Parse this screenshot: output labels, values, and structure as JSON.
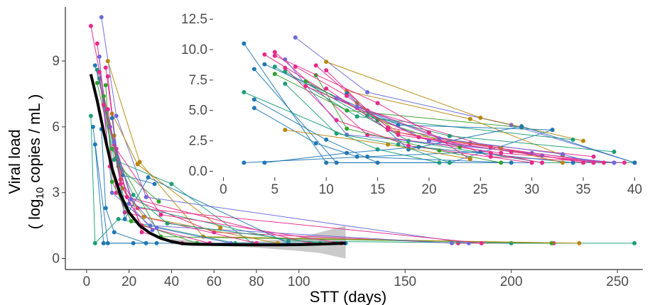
{
  "chart_data": [
    {
      "type": "line",
      "role": "main",
      "xlabel": "STT (days)",
      "ylabel_line1": "Viral load",
      "ylabel_line2_pre": "( log",
      "ylabel_line2_sub": "10",
      "ylabel_line2_post": " copies / mL )",
      "xlim": [
        -10,
        262
      ],
      "ylim": [
        -0.5,
        11.2
      ],
      "xticks": [
        0,
        20,
        40,
        60,
        80,
        100,
        150,
        200,
        250
      ],
      "yticks": [
        0,
        3,
        6,
        9
      ],
      "trend": {
        "x": [
          2,
          5,
          8,
          12,
          16,
          20,
          25,
          30,
          35,
          40,
          45,
          50,
          60,
          70,
          80,
          90,
          100,
          110,
          122
        ],
        "y": [
          8.4,
          7.2,
          5.8,
          4.1,
          2.9,
          2.1,
          1.5,
          1.15,
          0.92,
          0.78,
          0.68,
          0.65,
          0.64,
          0.63,
          0.62,
          0.62,
          0.63,
          0.66,
          0.7
        ]
      },
      "ci_band": {
        "x": [
          40,
          60,
          80,
          100,
          110,
          122
        ],
        "lower": [
          0.66,
          0.58,
          0.5,
          0.35,
          0.25,
          0.0
        ],
        "upper": [
          0.9,
          0.72,
          0.78,
          0.95,
          1.2,
          1.5
        ]
      },
      "series": [
        {
          "color": "#e7298a",
          "x": [
            5,
            14,
            60,
            175,
            220
          ],
          "y": [
            9.8,
            3.0,
            1.2,
            0.7,
            0.7
          ]
        },
        {
          "color": "#1b9e77",
          "x": [
            6,
            18,
            95,
            200,
            258
          ],
          "y": [
            8.2,
            2.5,
            0.8,
            0.7,
            0.7
          ]
        },
        {
          "color": "#1f78b4",
          "x": [
            3,
            10,
            22,
            122
          ],
          "y": [
            6.0,
            0.7,
            0.7,
            0.7
          ]
        },
        {
          "color": "#33a02c",
          "x": [
            5,
            12,
            35,
            219
          ],
          "y": [
            8.0,
            5.0,
            1.0,
            0.7
          ]
        },
        {
          "color": "#6a6adb",
          "x": [
            7,
            14,
            28,
            180
          ],
          "y": [
            11.0,
            6.5,
            2.8,
            0.7
          ]
        },
        {
          "color": "#b8860b",
          "x": [
            10,
            25,
            55,
            232
          ],
          "y": [
            9.0,
            4.4,
            1.0,
            0.7
          ]
        },
        {
          "color": "#1f78b4",
          "x": [
            4,
            8,
            33
          ],
          "y": [
            5.2,
            0.7,
            0.7
          ]
        },
        {
          "color": "#e7298a",
          "x": [
            2,
            11,
            26,
            45
          ],
          "y": [
            10.6,
            6.0,
            1.2,
            0.7
          ]
        },
        {
          "color": "#1b9e77",
          "x": [
            5,
            13,
            40,
            78
          ],
          "y": [
            8.6,
            4.5,
            3.4,
            0.7
          ]
        },
        {
          "color": "#e7298a",
          "x": [
            9,
            16,
            24,
            186
          ],
          "y": [
            8.7,
            3.6,
            2.3,
            0.7
          ]
        },
        {
          "color": "#6a6adb",
          "x": [
            6,
            12,
            30,
            172
          ],
          "y": [
            9.2,
            3.0,
            1.5,
            0.7
          ]
        },
        {
          "color": "#1f78b4",
          "x": [
            4,
            17,
            32
          ],
          "y": [
            8.8,
            3.8,
            3.4
          ]
        },
        {
          "color": "#33a02c",
          "x": [
            8,
            15,
            34
          ],
          "y": [
            7.4,
            4.2,
            2.6
          ]
        },
        {
          "color": "#b8860b",
          "x": [
            12,
            24,
            63
          ],
          "y": [
            6.6,
            4.3,
            1.4
          ]
        },
        {
          "color": "#e7298a",
          "x": [
            6,
            11,
            18,
            80
          ],
          "y": [
            8.5,
            4.2,
            2.1,
            0.7
          ]
        },
        {
          "color": "#1b9e77",
          "x": [
            2,
            4,
            15,
            70
          ],
          "y": [
            6.5,
            0.7,
            1.8,
            0.7
          ]
        },
        {
          "color": "#1f78b4",
          "x": [
            7,
            9,
            13,
            28
          ],
          "y": [
            5.9,
            2.3,
            1.2,
            0.7
          ]
        },
        {
          "color": "#e7298a",
          "x": [
            10,
            14,
            35,
            120
          ],
          "y": [
            8.3,
            5.0,
            2.0,
            0.7
          ]
        },
        {
          "color": "#33a02c",
          "x": [
            9,
            12,
            21,
            52
          ],
          "y": [
            7.9,
            3.5,
            1.7,
            0.7
          ]
        },
        {
          "color": "#6a6adb",
          "x": [
            11,
            20,
            31
          ],
          "y": [
            6.0,
            2.5,
            1.3
          ]
        },
        {
          "color": "#b8860b",
          "x": [
            13,
            17,
            27,
            90
          ],
          "y": [
            5.6,
            3.2,
            1.9,
            0.7
          ]
        },
        {
          "color": "#e7298a",
          "x": [
            8,
            13,
            19,
            105
          ],
          "y": [
            7.0,
            5.2,
            2.8,
            0.7
          ]
        },
        {
          "color": "#1f78b4",
          "x": [
            12,
            18,
            29,
            95
          ],
          "y": [
            6.4,
            1.8,
            3.7,
            0.7
          ]
        },
        {
          "color": "#1b9e77",
          "x": [
            14,
            22,
            38,
            110
          ],
          "y": [
            4.6,
            2.9,
            1.6,
            0.7
          ]
        },
        {
          "color": "#e7298a",
          "x": [
            10,
            16,
            26,
            58
          ],
          "y": [
            6.8,
            3.4,
            1.5,
            0.7
          ]
        },
        {
          "color": "#6a6adb",
          "x": [
            13,
            21,
            33,
            68
          ],
          "y": [
            5.3,
            2.7,
            1.4,
            0.7
          ]
        }
      ]
    },
    {
      "type": "line",
      "role": "inset",
      "xlim": [
        -1,
        40.8
      ],
      "ylim": [
        -0.5,
        12.8
      ],
      "xticks": [
        0,
        5,
        10,
        15,
        20,
        25,
        30,
        35,
        40
      ],
      "yticks": [
        "0.0",
        "2.5",
        "5.0",
        "7.5",
        "10.0",
        "12.5"
      ],
      "series": [
        {
          "color": "#e7298a",
          "x": [
            5,
            14,
            27,
            38
          ],
          "y": [
            9.8,
            3.0,
            1.5,
            0.7
          ]
        },
        {
          "color": "#1b9e77",
          "x": [
            6,
            18,
            31,
            40
          ],
          "y": [
            8.2,
            2.5,
            0.7,
            0.7
          ]
        },
        {
          "color": "#1f78b4",
          "x": [
            2,
            10,
            22,
            32
          ],
          "y": [
            10.5,
            0.7,
            0.7,
            3.4
          ]
        },
        {
          "color": "#33a02c",
          "x": [
            5,
            12,
            29
          ],
          "y": [
            8.0,
            5.0,
            3.6
          ]
        },
        {
          "color": "#6a6adb",
          "x": [
            7,
            14,
            28,
            40
          ],
          "y": [
            11.0,
            6.5,
            3.8,
            0.7
          ]
        },
        {
          "color": "#b8860b",
          "x": [
            10,
            25,
            35
          ],
          "y": [
            9.0,
            4.4,
            2.5
          ]
        },
        {
          "color": "#1f78b4",
          "x": [
            3,
            11,
            30
          ],
          "y": [
            8.4,
            0.7,
            0.7
          ]
        },
        {
          "color": "#e7298a",
          "x": [
            4,
            11,
            26,
            39
          ],
          "y": [
            9.6,
            6.0,
            1.2,
            0.7
          ]
        },
        {
          "color": "#1b9e77",
          "x": [
            5,
            13,
            34
          ],
          "y": [
            8.6,
            4.5,
            2.6
          ]
        },
        {
          "color": "#e7298a",
          "x": [
            9,
            16,
            24,
            36
          ],
          "y": [
            8.7,
            3.6,
            2.3,
            1.2
          ]
        },
        {
          "color": "#6a6adb",
          "x": [
            6,
            12,
            30,
            38
          ],
          "y": [
            9.2,
            3.0,
            1.5,
            0.7
          ]
        },
        {
          "color": "#1f78b4",
          "x": [
            4,
            17,
            32
          ],
          "y": [
            8.8,
            3.8,
            3.4
          ]
        },
        {
          "color": "#33a02c",
          "x": [
            8,
            15,
            23
          ],
          "y": [
            7.4,
            4.2,
            2.0
          ]
        },
        {
          "color": "#b8860b",
          "x": [
            12,
            24,
            33
          ],
          "y": [
            6.6,
            4.3,
            1.3
          ]
        },
        {
          "color": "#e7298a",
          "x": [
            6,
            11,
            18,
            30
          ],
          "y": [
            8.5,
            4.2,
            2.1,
            0.7
          ]
        },
        {
          "color": "#1b9e77",
          "x": [
            2,
            15,
            21
          ],
          "y": [
            6.5,
            1.8,
            0.7
          ]
        },
        {
          "color": "#1f78b4",
          "x": [
            3,
            9,
            13,
            28
          ],
          "y": [
            5.2,
            2.3,
            1.2,
            0.7
          ]
        },
        {
          "color": "#1f78b4",
          "x": [
            2,
            14,
            25
          ],
          "y": [
            0.7,
            1.2,
            1.6
          ]
        },
        {
          "color": "#1f78b4",
          "x": [
            4,
            12,
            19,
            34
          ],
          "y": [
            0.7,
            1.5,
            2.0,
            0.7
          ]
        },
        {
          "color": "#e7298a",
          "x": [
            10,
            14,
            26,
            35
          ],
          "y": [
            8.3,
            5.0,
            2.0,
            0.7
          ]
        },
        {
          "color": "#33a02c",
          "x": [
            9,
            12,
            21,
            27
          ],
          "y": [
            7.9,
            3.5,
            1.7,
            0.7
          ]
        },
        {
          "color": "#6a6adb",
          "x": [
            11,
            20,
            31
          ],
          "y": [
            6.0,
            2.5,
            1.3
          ]
        },
        {
          "color": "#b8860b",
          "x": [
            13,
            17,
            27,
            33
          ],
          "y": [
            5.6,
            3.2,
            1.9,
            0.7
          ]
        },
        {
          "color": "#e7298a",
          "x": [
            8,
            13,
            19,
            37
          ],
          "y": [
            7.0,
            5.2,
            2.8,
            0.7
          ]
        },
        {
          "color": "#1f78b4",
          "x": [
            12,
            18,
            29,
            40
          ],
          "y": [
            6.4,
            1.8,
            3.7,
            0.7
          ]
        },
        {
          "color": "#1b9e77",
          "x": [
            14,
            22,
            38
          ],
          "y": [
            4.6,
            2.9,
            1.6
          ]
        },
        {
          "color": "#e7298a",
          "x": [
            10,
            16,
            26,
            31
          ],
          "y": [
            6.8,
            3.4,
            1.5,
            0.7
          ]
        },
        {
          "color": "#6a6adb",
          "x": [
            13,
            21,
            33,
            36
          ],
          "y": [
            5.3,
            2.7,
            1.4,
            0.7
          ]
        },
        {
          "color": "#e7298a",
          "x": [
            5,
            15,
            20,
            24
          ],
          "y": [
            9.5,
            5.6,
            3.2,
            1.0
          ]
        },
        {
          "color": "#1b9e77",
          "x": [
            6,
            11,
            17,
            22
          ],
          "y": [
            7.2,
            3.1,
            2.2,
            0.7
          ]
        },
        {
          "color": "#b8860b",
          "x": [
            6,
            16,
            24
          ],
          "y": [
            3.4,
            2.2,
            1.0
          ]
        },
        {
          "color": "#1f78b4",
          "x": [
            3,
            10,
            15
          ],
          "y": [
            5.9,
            2.6,
            0.7
          ]
        },
        {
          "color": "#e7298a",
          "x": [
            7,
            12,
            17,
            28,
            36
          ],
          "y": [
            8.6,
            6.2,
            3.0,
            1.6,
            0.7
          ]
        }
      ]
    }
  ]
}
